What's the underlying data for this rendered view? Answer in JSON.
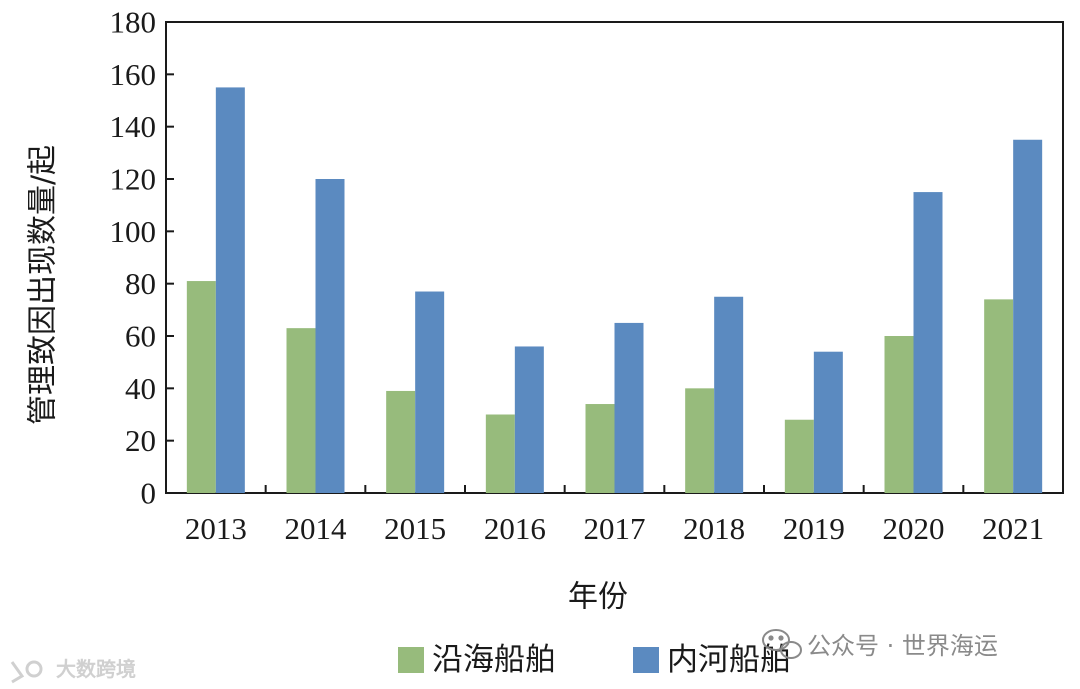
{
  "chart_data": {
    "type": "bar",
    "categories": [
      "2013",
      "2014",
      "2015",
      "2016",
      "2017",
      "2018",
      "2019",
      "2020",
      "2021"
    ],
    "series": [
      {
        "name": "沿海船舶",
        "color": "#97bb7c",
        "values": [
          81,
          63,
          39,
          30,
          34,
          40,
          28,
          60,
          74
        ]
      },
      {
        "name": "内河船舶",
        "color": "#5b8ac0",
        "values": [
          155,
          120,
          77,
          56,
          65,
          75,
          54,
          115,
          135
        ]
      }
    ],
    "xlabel": "年份",
    "ylabel": "管理致因出现数量/起",
    "ylim": [
      0,
      180
    ],
    "yticks": [
      0,
      20,
      40,
      60,
      80,
      100,
      120,
      140,
      160,
      180
    ],
    "legend_position": "bottom-center",
    "grid": false
  },
  "watermarks": {
    "right": "公众号 · 世界海运",
    "left": "大数跨境"
  },
  "colors": {
    "axis": "#1a1a1a",
    "coastal": "#97bb7c",
    "inland": "#5b8ac0"
  }
}
